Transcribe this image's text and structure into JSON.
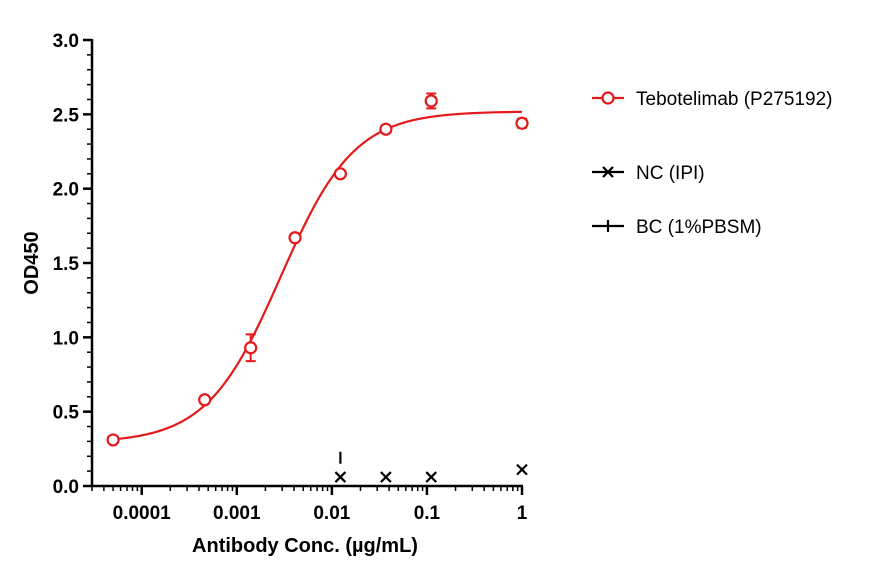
{
  "chart_data": {
    "type": "scatter",
    "xlabel": "Antibody Conc. (µg/mL)",
    "ylabel": "OD450",
    "x_scale": "log",
    "xlim": [
      3e-05,
      1.0
    ],
    "ylim": [
      0,
      3.0
    ],
    "x_ticks": [
      0.0001,
      0.001,
      0.01,
      0.1,
      1
    ],
    "x_tick_labels": [
      "0.0001",
      "0.001",
      "0.01",
      "0.1",
      "1"
    ],
    "y_ticks": [
      0.0,
      0.5,
      1.0,
      1.5,
      2.0,
      2.5,
      3.0
    ],
    "y_tick_labels": [
      "0.0",
      "0.5",
      "1.0",
      "1.5",
      "2.0",
      "2.5",
      "3.0"
    ],
    "legend_position": "right",
    "series": [
      {
        "name": "Tebotelimab (P275192)",
        "color": "#e31a1c",
        "marker": "open-circle",
        "fit_curve": true,
        "points": [
          {
            "x": 5e-05,
            "y": 0.31,
            "err": 0.01
          },
          {
            "x": 0.00046,
            "y": 0.58,
            "err": 0.01
          },
          {
            "x": 0.0014,
            "y": 0.93,
            "err": 0.09
          },
          {
            "x": 0.0041,
            "y": 1.67,
            "err": 0.01
          },
          {
            "x": 0.0123,
            "y": 2.1,
            "err": 0.01
          },
          {
            "x": 0.037,
            "y": 2.4,
            "err": 0.01
          },
          {
            "x": 0.111,
            "y": 2.59,
            "err": 0.05
          },
          {
            "x": 1.0,
            "y": 2.44,
            "err": 0.03
          }
        ]
      },
      {
        "name": "NC (IPI)",
        "color": "#000000",
        "marker": "x",
        "points": [
          {
            "x": 0.0123,
            "y": 0.06
          },
          {
            "x": 0.037,
            "y": 0.06
          },
          {
            "x": 0.111,
            "y": 0.06
          },
          {
            "x": 1.0,
            "y": 0.11
          }
        ]
      },
      {
        "name": "BC (1%PBSM)",
        "color": "#000000",
        "marker": "dash",
        "points": [
          {
            "x": 0.0123,
            "y": 0.19
          }
        ]
      }
    ]
  }
}
